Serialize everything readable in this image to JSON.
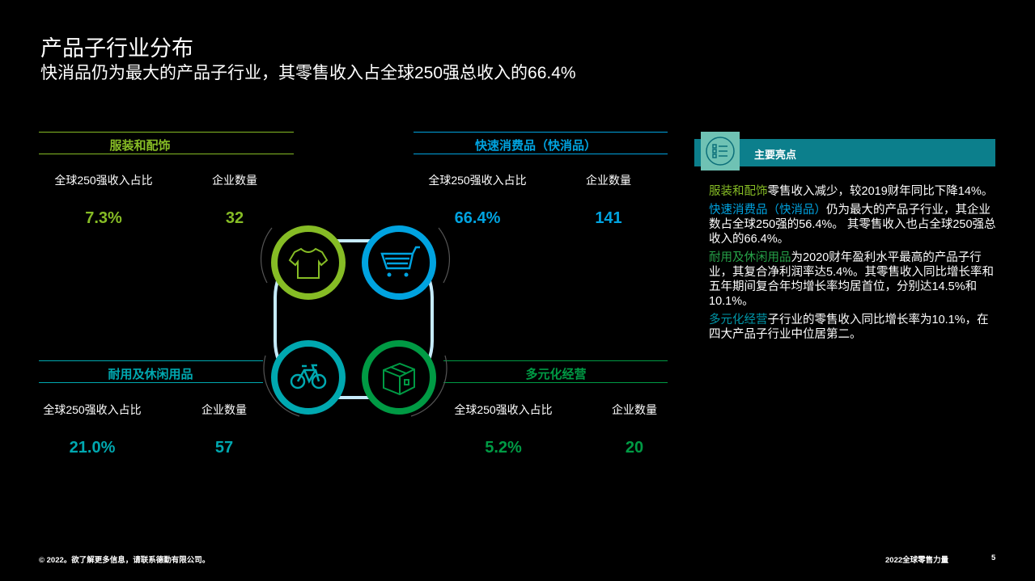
{
  "header": {
    "title": "产品子行业分布",
    "subtitle": "快消品仍为最大的产品子行业，其零售收入占全球250强总收入的66.4%"
  },
  "colors": {
    "apparel": "#86bc25",
    "fmcg": "#00a3e0",
    "durable": "#00a8b0",
    "diversified": "#009a44",
    "panel": "#0c7f8c"
  },
  "segments": [
    {
      "title": "服装和配饰",
      "share_label": "全球250强收入占比",
      "count_label": "企业数量",
      "share": "7.3%",
      "count": "32",
      "icon": "tshirt-icon"
    },
    {
      "title": "快速消费品（快消品）",
      "share_label": "全球250强收入占比",
      "count_label": "企业数量",
      "share": "66.4%",
      "count": "141",
      "icon": "shopping-cart-icon"
    },
    {
      "title": "耐用及休闲用品",
      "share_label": "全球250强收入占比",
      "count_label": "企业数量",
      "share": "21.0%",
      "count": "57",
      "icon": "bicycle-icon"
    },
    {
      "title": "多元化经营",
      "share_label": "全球250强收入占比",
      "count_label": "企业数量",
      "share": "5.2%",
      "count": "20",
      "icon": "box-icon"
    }
  ],
  "panel": {
    "title": "主要亮点",
    "items": [
      {
        "hl": "服装和配饰",
        "text": "零售收入减少，较2019财年同比下降14%。"
      },
      {
        "hl": "快速消费品（快消品）",
        "text": "仍为最大的产品子行业，其企业数占全球250强的56.4%。 其零售收入也占全球250强总收入的66.4%。"
      },
      {
        "hl": "耐用及休闲用品",
        "text": "为2020财年盈利水平最高的产品子行业，其复合净利润率达5.4%。其零售收入同比增长率和五年期间复合年均增长率均居首位，分别达14.5%和10.1%。"
      },
      {
        "hl": "多元化经营",
        "text": "子行业的零售收入同比增长率为10.1%，在四大产品子行业中位居第二。"
      }
    ]
  },
  "footer": {
    "copyright": "© 2022。欲了解更多信息，请联系德勤有限公司。",
    "report": "2022全球零售力量",
    "page": "5"
  }
}
